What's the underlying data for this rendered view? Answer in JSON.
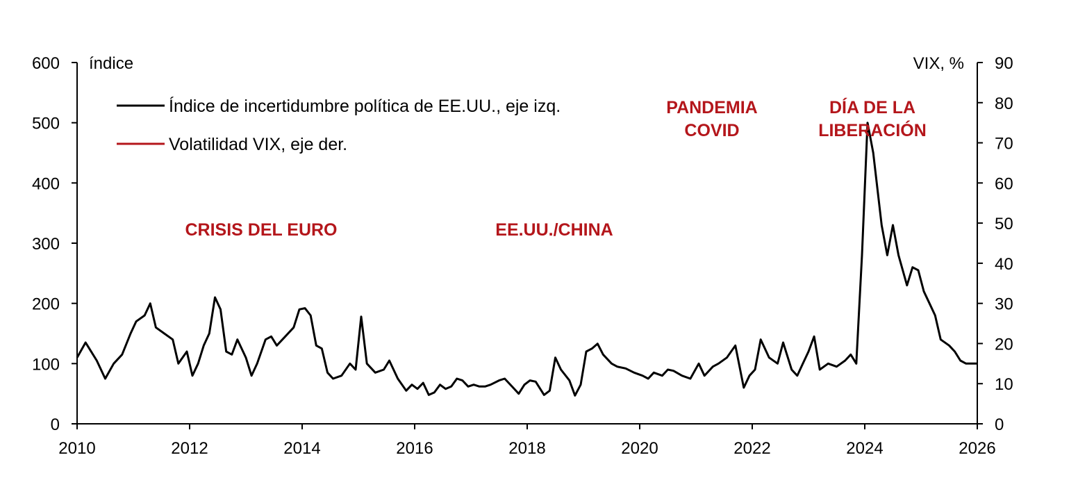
{
  "chart_data": {
    "type": "line",
    "x_ticks": [
      "2010",
      "2012",
      "2014",
      "2016",
      "2018",
      "2020",
      "2022",
      "2024",
      "2026"
    ],
    "xlim": [
      2010,
      2026
    ],
    "left_axis": {
      "label": "índice",
      "ylim": [
        0,
        600
      ],
      "ticks": [
        "0",
        "100",
        "200",
        "300",
        "400",
        "500",
        "600"
      ]
    },
    "right_axis": {
      "label": "VIX, %",
      "ylim": [
        0,
        90
      ],
      "ticks": [
        "0",
        "10",
        "20",
        "30",
        "40",
        "50",
        "60",
        "70",
        "80",
        "90"
      ]
    },
    "legend": {
      "placement": "top-left",
      "items": [
        {
          "label": "Índice de incertidumbre política de EE.UU., eje izq.",
          "color": "#000000"
        },
        {
          "label": "Volatilidad VIX, eje der.",
          "color": "#b4161b"
        }
      ]
    },
    "annotations": {
      "euro": "CRISIS DEL EURO",
      "china": "EE.UU./CHINA",
      "covid_1": "PANDEMIA",
      "covid_2": "COVID",
      "lib_1": "DÍA DE LA",
      "lib_2": "LIBERACIÓN"
    },
    "series": [
      {
        "name": "Índice de incertidumbre política de EE.UU.",
        "axis": "left",
        "color": "#000000",
        "points": [
          [
            2010.0,
            110
          ],
          [
            2010.15,
            135
          ],
          [
            2010.35,
            105
          ],
          [
            2010.5,
            75
          ],
          [
            2010.65,
            100
          ],
          [
            2010.8,
            115
          ],
          [
            2010.95,
            150
          ],
          [
            2011.05,
            170
          ],
          [
            2011.2,
            180
          ],
          [
            2011.3,
            200
          ],
          [
            2011.4,
            160
          ],
          [
            2011.55,
            150
          ],
          [
            2011.7,
            140
          ],
          [
            2011.8,
            100
          ],
          [
            2011.95,
            120
          ],
          [
            2012.05,
            80
          ],
          [
            2012.15,
            100
          ],
          [
            2012.25,
            130
          ],
          [
            2012.35,
            150
          ],
          [
            2012.45,
            210
          ],
          [
            2012.55,
            190
          ],
          [
            2012.65,
            120
          ],
          [
            2012.75,
            115
          ],
          [
            2012.85,
            140
          ],
          [
            2013.0,
            110
          ],
          [
            2013.1,
            80
          ],
          [
            2013.2,
            100
          ],
          [
            2013.35,
            140
          ],
          [
            2013.45,
            145
          ],
          [
            2013.55,
            130
          ],
          [
            2013.7,
            145
          ],
          [
            2013.85,
            160
          ],
          [
            2013.95,
            190
          ],
          [
            2014.05,
            192
          ],
          [
            2014.15,
            180
          ],
          [
            2014.25,
            130
          ],
          [
            2014.35,
            125
          ],
          [
            2014.45,
            85
          ],
          [
            2014.55,
            75
          ],
          [
            2014.7,
            80
          ],
          [
            2014.85,
            100
          ],
          [
            2014.95,
            90
          ],
          [
            2015.05,
            178
          ],
          [
            2015.15,
            100
          ],
          [
            2015.3,
            85
          ],
          [
            2015.45,
            90
          ],
          [
            2015.55,
            105
          ],
          [
            2015.7,
            75
          ],
          [
            2015.85,
            55
          ],
          [
            2015.95,
            65
          ],
          [
            2016.05,
            58
          ],
          [
            2016.15,
            68
          ],
          [
            2016.25,
            48
          ],
          [
            2016.35,
            52
          ],
          [
            2016.45,
            65
          ],
          [
            2016.55,
            58
          ],
          [
            2016.65,
            62
          ],
          [
            2016.75,
            75
          ],
          [
            2016.85,
            72
          ],
          [
            2016.95,
            62
          ],
          [
            2017.05,
            65
          ],
          [
            2017.15,
            62
          ],
          [
            2017.25,
            62
          ],
          [
            2017.35,
            65
          ],
          [
            2017.5,
            72
          ],
          [
            2017.6,
            75
          ],
          [
            2017.75,
            60
          ],
          [
            2017.85,
            50
          ],
          [
            2017.95,
            65
          ],
          [
            2018.05,
            72
          ],
          [
            2018.15,
            70
          ],
          [
            2018.3,
            48
          ],
          [
            2018.4,
            55
          ],
          [
            2018.5,
            110
          ],
          [
            2018.6,
            90
          ],
          [
            2018.75,
            72
          ],
          [
            2018.85,
            47
          ],
          [
            2018.95,
            65
          ],
          [
            2019.05,
            120
          ],
          [
            2019.15,
            125
          ],
          [
            2019.25,
            133
          ],
          [
            2019.35,
            115
          ],
          [
            2019.5,
            100
          ],
          [
            2019.6,
            95
          ],
          [
            2019.75,
            92
          ],
          [
            2019.9,
            85
          ],
          [
            2020.05,
            80
          ],
          [
            2020.15,
            75
          ],
          [
            2020.25,
            85
          ],
          [
            2020.4,
            80
          ],
          [
            2020.5,
            90
          ],
          [
            2020.6,
            88
          ],
          [
            2020.75,
            80
          ],
          [
            2020.9,
            75
          ],
          [
            2021.05,
            100
          ],
          [
            2021.15,
            80
          ],
          [
            2021.3,
            95
          ],
          [
            2021.4,
            100
          ],
          [
            2021.55,
            110
          ],
          [
            2021.7,
            130
          ],
          [
            2021.85,
            60
          ],
          [
            2021.95,
            80
          ],
          [
            2022.05,
            90
          ],
          [
            2022.15,
            140
          ],
          [
            2022.3,
            110
          ],
          [
            2022.45,
            100
          ],
          [
            2022.55,
            135
          ],
          [
            2022.7,
            90
          ],
          [
            2022.8,
            80
          ],
          [
            2022.9,
            100
          ],
          [
            2023.0,
            120
          ],
          [
            2023.1,
            145
          ],
          [
            2023.2,
            90
          ],
          [
            2023.35,
            100
          ],
          [
            2023.5,
            95
          ],
          [
            2023.65,
            105
          ],
          [
            2023.75,
            115
          ],
          [
            2023.85,
            100
          ],
          [
            2023.95,
            280
          ],
          [
            2024.05,
            500
          ],
          [
            2024.15,
            450
          ],
          [
            2024.3,
            330
          ],
          [
            2024.4,
            280
          ],
          [
            2024.5,
            330
          ],
          [
            2024.6,
            280
          ],
          [
            2024.75,
            230
          ],
          [
            2024.85,
            260
          ],
          [
            2024.95,
            255
          ],
          [
            2025.05,
            220
          ],
          [
            2025.15,
            200
          ],
          [
            2025.25,
            180
          ],
          [
            2025.35,
            140
          ],
          [
            2025.5,
            130
          ],
          [
            2025.6,
            120
          ],
          [
            2025.7,
            105
          ],
          [
            2025.8,
            100
          ],
          [
            2025.9,
            100
          ],
          [
            2026.0,
            100
          ]
        ]
      },
      {
        "name": "Volatilidad VIX",
        "axis": "right",
        "color": "#b4161b",
        "points": []
      }
    ]
  }
}
